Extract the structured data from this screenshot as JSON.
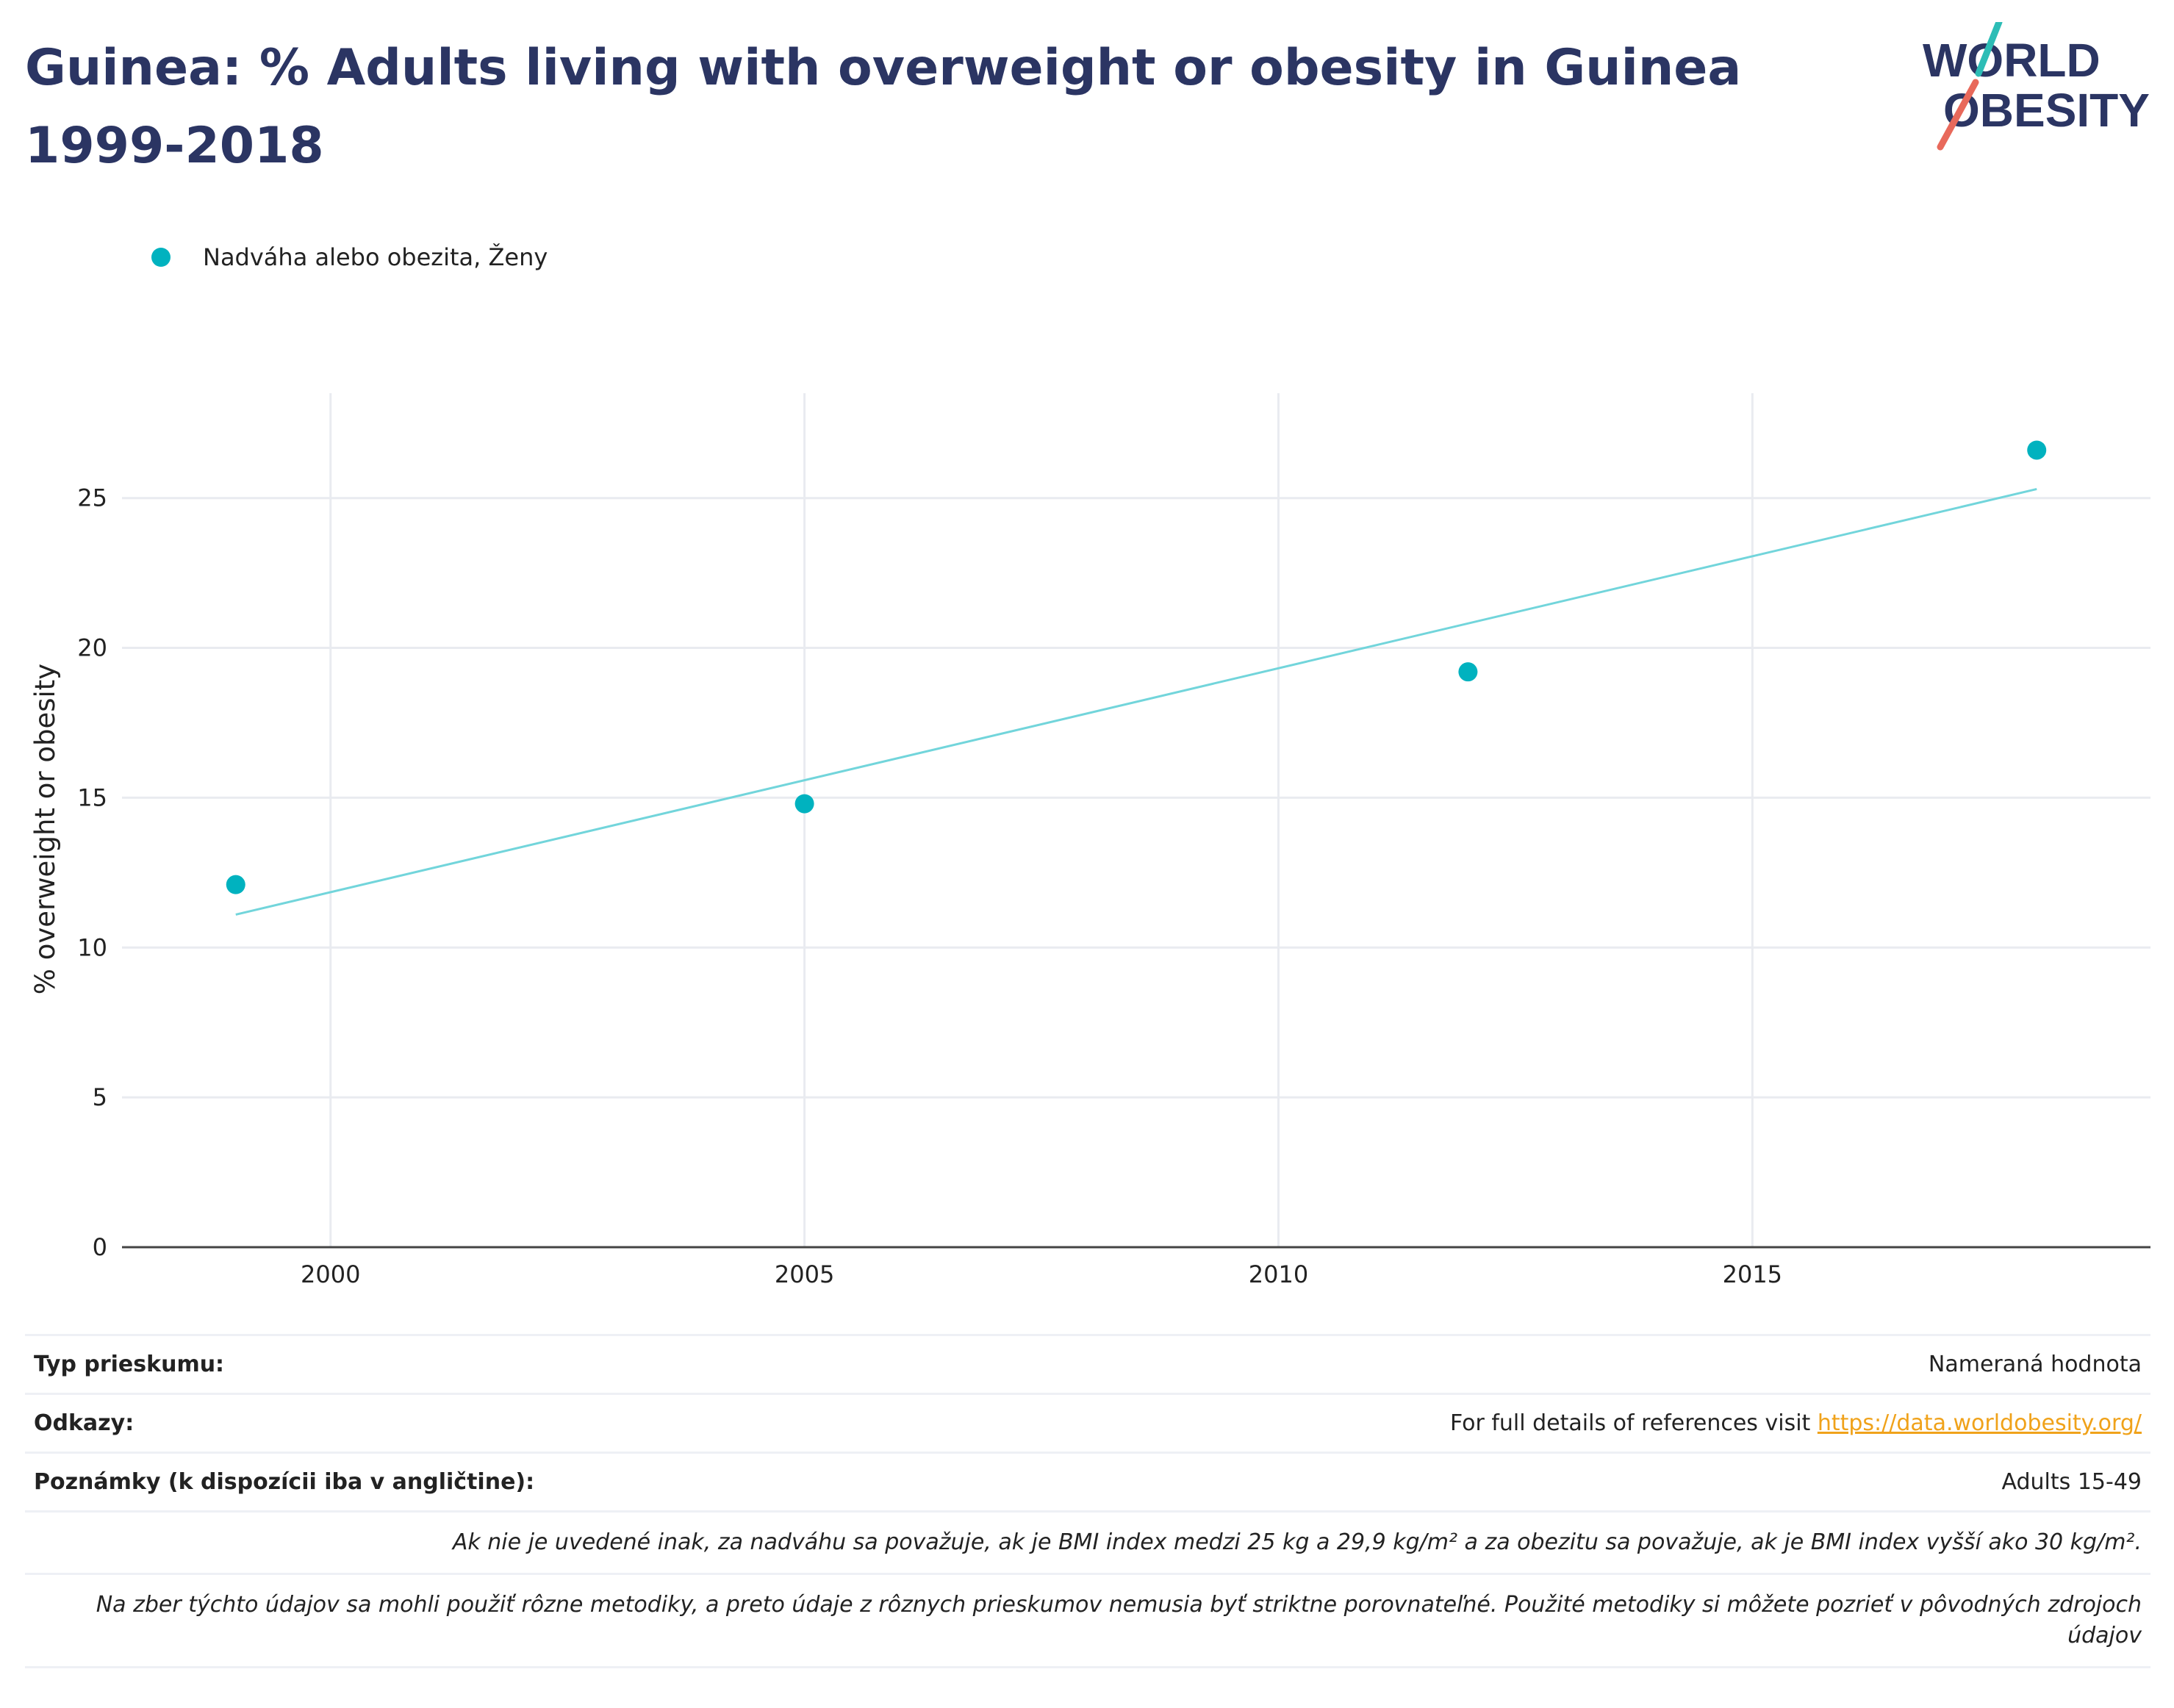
{
  "title": "Guinea: % Adults living with overweight or obesity in Guinea 1999-2018",
  "logo": {
    "line1": "WORLD",
    "line2": "OBESITY",
    "slash_color_top": "#2dbdb6",
    "slash_color_bottom": "#e8695b",
    "text_color": "#2b3563"
  },
  "legend": {
    "label": "Nadváha alebo obezita, Ženy",
    "color": "#00b2bf"
  },
  "chart_data": {
    "type": "scatter",
    "title": "Guinea: % Adults living with overweight or obesity in Guinea 1999-2018",
    "xlabel": "",
    "ylabel": "% overweight or obesity",
    "xlim": [
      1997.8,
      2019.2
    ],
    "ylim": [
      0,
      28.5
    ],
    "xticks": [
      2000,
      2005,
      2010,
      2015
    ],
    "yticks": [
      0,
      5,
      10,
      15,
      20,
      25
    ],
    "grid": true,
    "legend_position": "top-left",
    "series": [
      {
        "name": "Nadváha alebo obezita, Ženy",
        "color": "#00b2bf",
        "points": [
          {
            "x": 1999,
            "y": 12.1
          },
          {
            "x": 2005,
            "y": 14.8
          },
          {
            "x": 2012,
            "y": 19.2
          },
          {
            "x": 2018,
            "y": 26.6
          }
        ],
        "trendline": {
          "color": "#72d5db",
          "from": {
            "x": 1999,
            "y": 11.1
          },
          "to": {
            "x": 2018,
            "y": 25.3
          }
        }
      }
    ]
  },
  "info": {
    "survey_type_label": "Typ prieskumu:",
    "survey_type_value": "Nameraná hodnota",
    "references_label": "Odkazy:",
    "references_text": "For full details of references visit ",
    "references_link": "https://data.worldobesity.org/",
    "notes_label": "Poznámky (k dispozícii iba v angličtine):",
    "notes_value": "Adults 15-49",
    "definition_note": "Ak nie je uvedené inak, za nadváhu sa považuje, ak je BMI index medzi 25 kg a 29,9 kg/m² a za obezitu sa považuje, ak je BMI index vyšší ako 30 kg/m².",
    "methodology_note": "Na zber týchto údajov sa mohli použiť rôzne metodiky, a preto údaje z rôznych prieskumov nemusia byť striktne porovnateľné. Použité metodiky si môžete pozrieť v pôvodných zdrojoch údajov"
  }
}
